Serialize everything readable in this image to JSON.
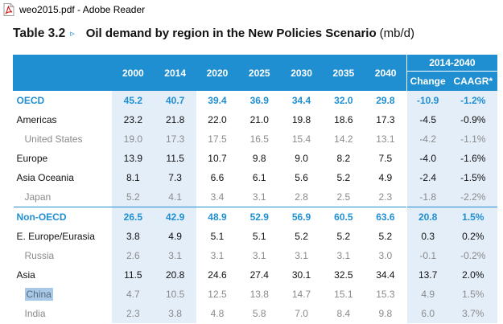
{
  "window": {
    "title": "weo2015.pdf - Adobe Reader",
    "icon": "pdf-file-icon"
  },
  "table": {
    "number": "Table 3.2",
    "arrow": "▹",
    "title": "Oil demand by region in the New Policies Scenario",
    "unit": "(mb/d)",
    "years": [
      "2000",
      "2014",
      "2020",
      "2025",
      "2030",
      "2035",
      "2040"
    ],
    "range_label": "2014-2040",
    "change_label": "Change",
    "caagr_label": "CAAGR*",
    "rows": [
      {
        "region": "OECD",
        "values": [
          "45.2",
          "40.7",
          "39.4",
          "36.9",
          "34.4",
          "32.0",
          "29.8"
        ],
        "change": "-10.9",
        "caagr": "-1.2%"
      },
      {
        "region": "Americas",
        "values": [
          "23.2",
          "21.8",
          "22.0",
          "21.0",
          "19.8",
          "18.6",
          "17.3"
        ],
        "change": "-4.5",
        "caagr": "-0.9%"
      },
      {
        "region": "United States",
        "values": [
          "19.0",
          "17.3",
          "17.5",
          "16.5",
          "15.4",
          "14.2",
          "13.1"
        ],
        "change": "-4.2",
        "caagr": "-1.1%"
      },
      {
        "region": "Europe",
        "values": [
          "13.9",
          "11.5",
          "10.7",
          "9.8",
          "9.0",
          "8.2",
          "7.5"
        ],
        "change": "-4.0",
        "caagr": "-1.6%"
      },
      {
        "region": "Asia Oceania",
        "values": [
          "8.1",
          "7.3",
          "6.6",
          "6.1",
          "5.6",
          "5.2",
          "4.9"
        ],
        "change": "-2.4",
        "caagr": "-1.5%"
      },
      {
        "region": "Japan",
        "values": [
          "5.2",
          "4.1",
          "3.4",
          "3.1",
          "2.8",
          "2.5",
          "2.3"
        ],
        "change": "-1.8",
        "caagr": "-2.2%"
      },
      {
        "region": "Non-OECD",
        "values": [
          "26.5",
          "42.9",
          "48.9",
          "52.9",
          "56.9",
          "60.5",
          "63.6"
        ],
        "change": "20.8",
        "caagr": "1.5%"
      },
      {
        "region": "E. Europe/Eurasia",
        "values": [
          "3.8",
          "4.9",
          "5.1",
          "5.1",
          "5.2",
          "5.2",
          "5.2"
        ],
        "change": "0.3",
        "caagr": "0.2%"
      },
      {
        "region": "Russia",
        "values": [
          "2.6",
          "3.1",
          "3.1",
          "3.1",
          "3.1",
          "3.1",
          "3.0"
        ],
        "change": "-0.1",
        "caagr": "-0.2%"
      },
      {
        "region": "Asia",
        "values": [
          "11.5",
          "20.8",
          "24.6",
          "27.4",
          "30.1",
          "32.5",
          "34.4"
        ],
        "change": "13.7",
        "caagr": "2.0%"
      },
      {
        "region": "China",
        "values": [
          "4.7",
          "10.5",
          "12.5",
          "13.8",
          "14.7",
          "15.1",
          "15.3"
        ],
        "change": "4.9",
        "caagr": "1.5%"
      },
      {
        "region": "India",
        "values": [
          "2.3",
          "3.8",
          "4.8",
          "5.8",
          "7.0",
          "8.4",
          "9.8"
        ],
        "change": "6.0",
        "caagr": "3.7%"
      }
    ]
  },
  "colors": {
    "accent": "#1f8fd2",
    "highlight": "#e4eef8",
    "muted": "#8a8a8a",
    "selection": "#a8c9e8"
  }
}
